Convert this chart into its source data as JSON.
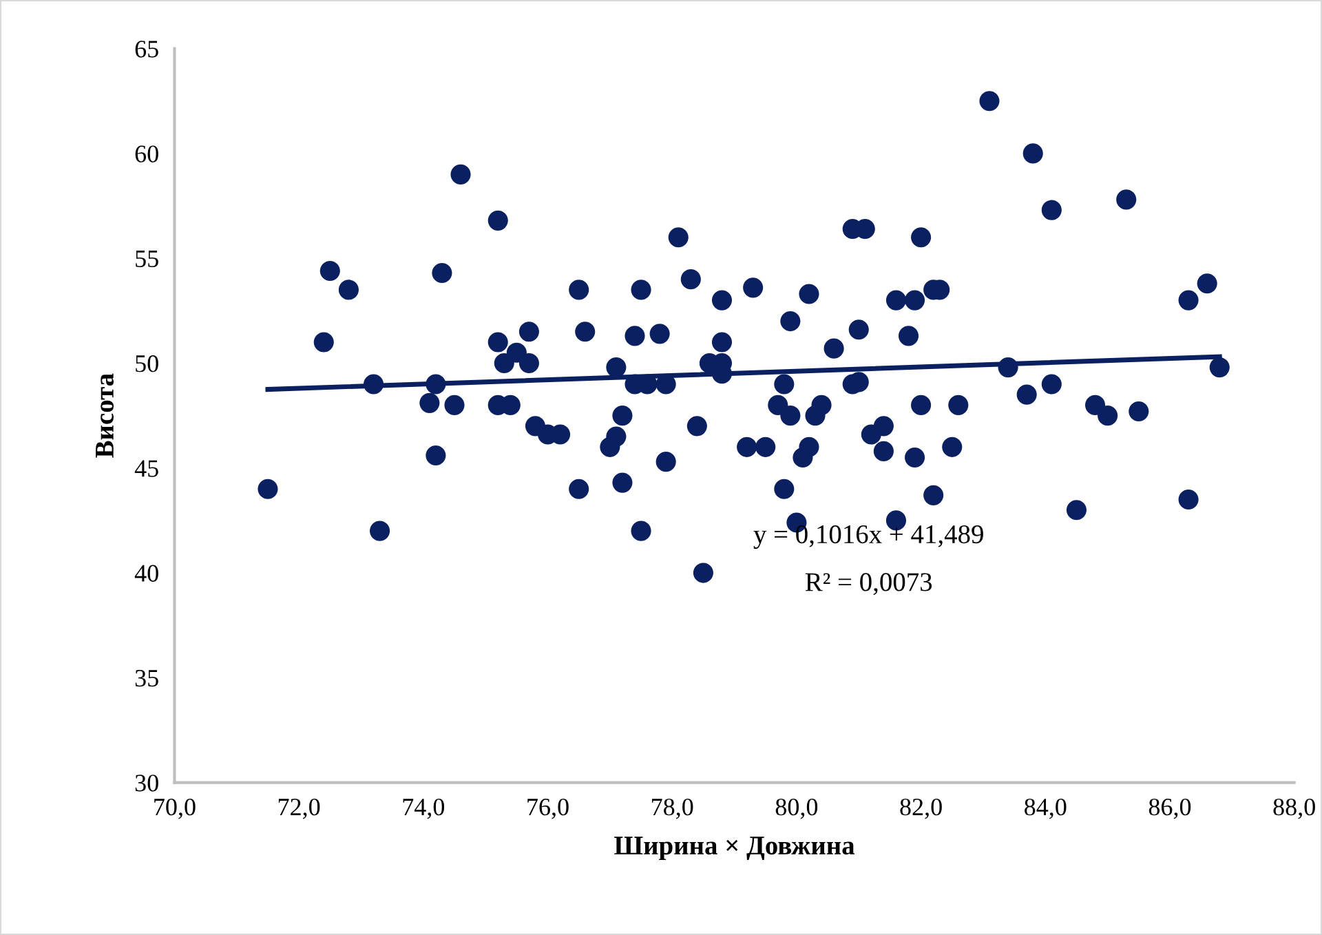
{
  "chart_data": {
    "type": "scatter",
    "xlabel": "Ширина × Довжина",
    "ylabel": "Висота",
    "marker": "circle",
    "grid": false,
    "xlim": [
      70,
      88
    ],
    "ylim": [
      30,
      65
    ],
    "xticks": [
      {
        "value": 70,
        "label": "70,0"
      },
      {
        "value": 72,
        "label": "72,0"
      },
      {
        "value": 74,
        "label": "74,0"
      },
      {
        "value": 76,
        "label": "76,0"
      },
      {
        "value": 78,
        "label": "78,0"
      },
      {
        "value": 80,
        "label": "80,0"
      },
      {
        "value": 82,
        "label": "82,0"
      },
      {
        "value": 84,
        "label": "84,0"
      },
      {
        "value": 86,
        "label": "86,0"
      },
      {
        "value": 88,
        "label": "88,0"
      }
    ],
    "yticks": [
      30,
      35,
      40,
      45,
      50,
      55,
      60,
      65
    ],
    "annotations": [
      "y = 0,1016x + 41,489",
      "R² = 0,0073"
    ],
    "series": [
      {
        "color": "#0b2060",
        "x": [
          71.5,
          72.4,
          72.5,
          72.8,
          73.2,
          73.3,
          74.1,
          74.2,
          74.2,
          74.3,
          74.5,
          74.6,
          75.2,
          75.2,
          75.2,
          75.3,
          75.4,
          75.5,
          75.7,
          75.7,
          75.8,
          76.0,
          76.2,
          76.5,
          76.5,
          76.6,
          77.0,
          77.1,
          77.1,
          77.2,
          77.2,
          77.4,
          77.4,
          77.5,
          77.5,
          77.6,
          77.8,
          77.9,
          77.9,
          78.1,
          78.3,
          78.4,
          78.5,
          78.6,
          78.8,
          78.8,
          78.8,
          78.8,
          79.2,
          79.3,
          79.5,
          79.7,
          79.8,
          79.8,
          79.9,
          79.9,
          80.0,
          80.1,
          80.2,
          80.2,
          80.3,
          80.4,
          80.6,
          80.9,
          80.9,
          81.0,
          81.0,
          81.1,
          81.2,
          81.4,
          81.4,
          81.6,
          81.6,
          81.8,
          81.9,
          81.9,
          82.0,
          82.0,
          82.2,
          82.2,
          82.3,
          82.5,
          82.6,
          83.1,
          83.4,
          83.7,
          83.8,
          84.1,
          84.1,
          84.5,
          84.8,
          85.0,
          85.3,
          85.5,
          86.3,
          86.3,
          86.6,
          86.8
        ],
        "values": [
          44,
          51,
          54.4,
          53.5,
          49,
          42,
          48.1,
          45.6,
          49,
          54.3,
          48,
          59,
          56.8,
          51,
          48,
          50,
          48,
          50.5,
          50,
          51.5,
          47,
          46.6,
          46.6,
          53.5,
          44,
          51.5,
          46,
          46.5,
          49.8,
          47.5,
          44.3,
          51.3,
          49,
          53.5,
          42,
          49,
          51.4,
          45.3,
          49,
          56,
          54,
          47,
          40,
          50,
          53,
          51,
          50,
          49.5,
          46,
          53.6,
          46,
          48,
          49,
          44,
          52,
          47.5,
          42.4,
          45.5,
          46,
          53.3,
          47.5,
          48,
          50.7,
          56.4,
          49,
          51.6,
          49.1,
          56.4,
          46.6,
          45.8,
          47,
          53,
          42.5,
          51.3,
          45.5,
          53,
          56,
          48,
          53.5,
          43.7,
          53.5,
          46,
          48,
          62.5,
          49.8,
          48.5,
          60,
          57.3,
          49,
          43,
          48,
          47.5,
          57.8,
          47.7,
          53,
          43.5,
          53.8,
          49.8
        ]
      },
      {
        "type": "line",
        "color": "#0b2060",
        "x": [
          71.5,
          86.8
        ],
        "values": [
          48.75,
          50.31
        ],
        "line_style": "solid",
        "marker": "none"
      }
    ]
  }
}
